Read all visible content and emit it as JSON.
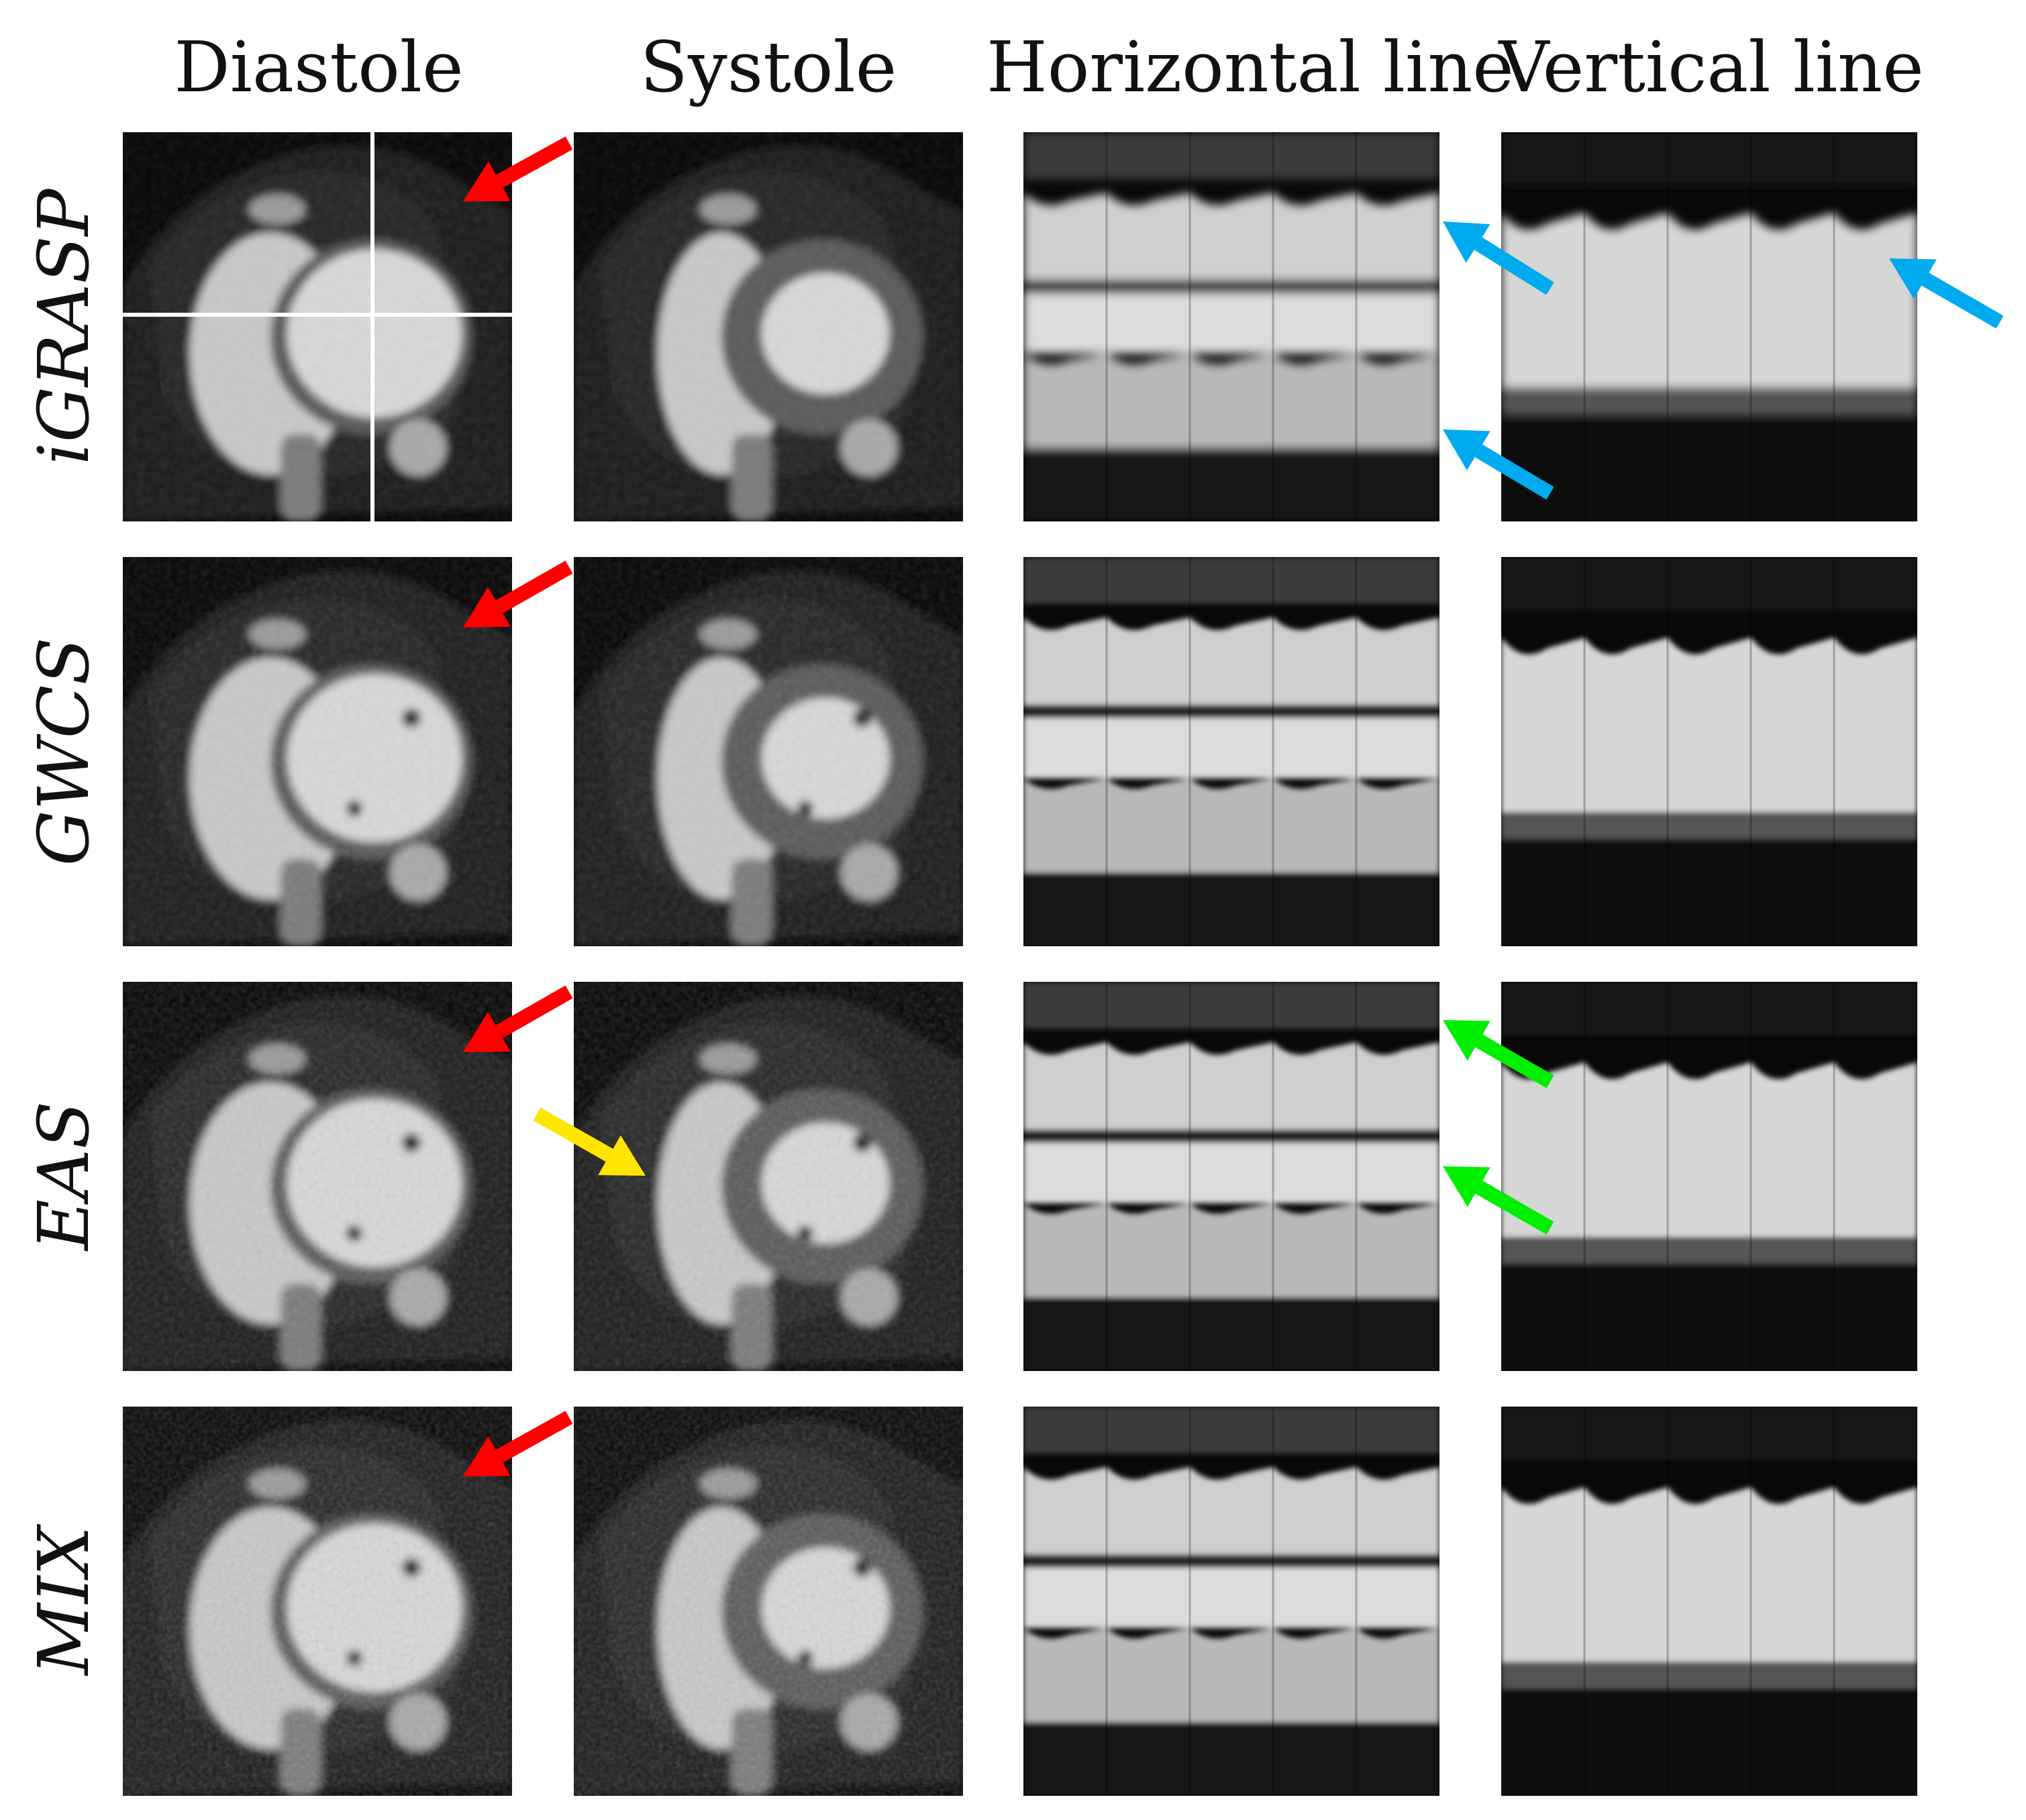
{
  "columns": [
    "Diastole",
    "Systole",
    "Horizontal line",
    "Vertical line"
  ],
  "rows": [
    "iGRASP",
    "GWCS",
    "EAS",
    "MIX"
  ],
  "arrow_colors": {
    "red": "#ff0000",
    "blue": "#00aaee",
    "green": "#00ee00",
    "yellow": "#ffe600"
  }
}
